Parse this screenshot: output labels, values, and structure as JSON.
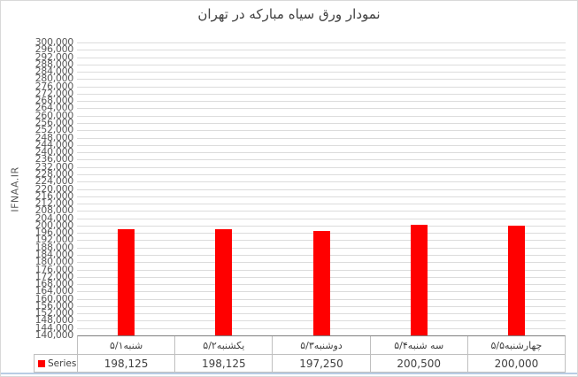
{
  "chart_data": {
    "type": "bar",
    "title": "نمودار ورق سیاه مبارکه در تهران",
    "ylabel": "IFNAA.IR",
    "xlabel": "",
    "categories": [
      "شنبه۵/۱",
      "یکشنبه۵/۲",
      "دوشنبه۵/۳",
      "سه شنبه۵/۴",
      "چهارشنبه۵/۵"
    ],
    "series": [
      {
        "name": "Series1",
        "values": [
          198125,
          198125,
          197250,
          200500,
          200000
        ]
      }
    ],
    "ylim": [
      140000,
      300000
    ],
    "ytick_step": 4000,
    "grid": true,
    "legend_position": "bottom-left",
    "data_table_shown": true
  },
  "colors": {
    "bar": "#FF0000",
    "gridline": "#DCDCDC",
    "axis_line": "#7F7F7F",
    "table_border": "#BFBFBF",
    "title_text": "#404040",
    "tick_text": "#595959",
    "cell_text": "#404040",
    "bottom_accent": "#B8CCE4",
    "background": "#FFFFFF"
  }
}
